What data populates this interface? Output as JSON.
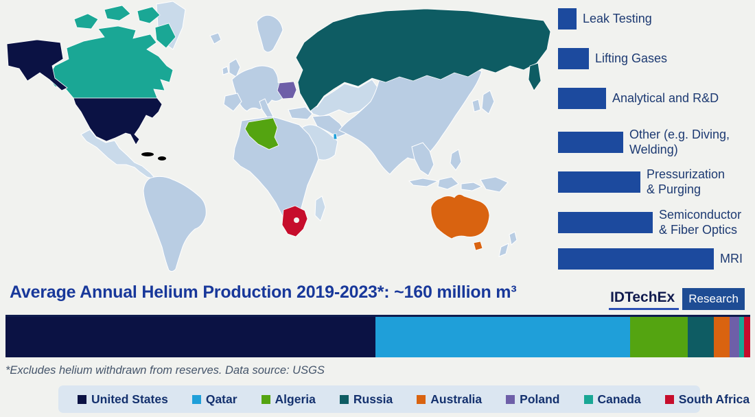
{
  "title": "Average Annual Helium Production 2019-2023*: ~160 million m³",
  "footnote": "*Excludes helium withdrawn from reserves. Data source: USGS",
  "logo": {
    "brand": "IDTechEx",
    "suffix": "Research"
  },
  "colors": {
    "page_bg": "#f1f2ef",
    "map_base_land": "#b9cde3",
    "map_base_land_alt": "#c9daea",
    "app_bar": "#1c4a9e",
    "app_label": "#1d3a72",
    "title_text": "#18389a",
    "footnote_text": "#44546a",
    "legend_bg": "#dbe6f1",
    "legend_text": "#14316e",
    "logo_text": "#111b4e",
    "logo_underline": "#2b50b4",
    "logo_box_bg": "#1e4c94",
    "bar_top_border": "#0e1b4d",
    "united_states": "#0b1244",
    "qatar": "#1f9fd9",
    "algeria": "#54a411",
    "russia": "#0e5c63",
    "australia": "#d96310",
    "poland": "#6e5fa8",
    "canada": "#1aa795",
    "south_africa": "#c60d2c",
    "lesotho_hole": "#f1f2ef"
  },
  "chart_data": [
    {
      "type": "bar",
      "orientation": "horizontal",
      "title": "Helium applications (no numeric axis shown; bar lengths relative)",
      "categories": [
        "Leak Testing",
        "Lifting Gases",
        "Analytical and R&D",
        "Other (e.g. Diving,\nWelding)",
        "Pressurization\n& Purging",
        "Semiconductor\n& Fiber Optics",
        "MRI"
      ],
      "values": [
        12,
        20,
        31,
        42,
        53,
        61,
        100
      ],
      "value_note": "percent of longest bar (MRI), estimated from pixels"
    },
    {
      "type": "bar",
      "subtype": "stacked-horizontal",
      "title": "Average Annual Helium Production 2019-2023*: ~160 million m³",
      "series": [
        {
          "name": "United States",
          "share_pct": 49.7,
          "color": "#0b1244"
        },
        {
          "name": "Qatar",
          "share_pct": 34.2,
          "color": "#1f9fd9"
        },
        {
          "name": "Algeria",
          "share_pct": 7.7,
          "color": "#54a411"
        },
        {
          "name": "Russia",
          "share_pct": 3.5,
          "color": "#0e5c63"
        },
        {
          "name": "Australia",
          "share_pct": 2.1,
          "color": "#d96310"
        },
        {
          "name": "Poland",
          "share_pct": 1.3,
          "color": "#6e5fa8"
        },
        {
          "name": "Canada",
          "share_pct": 0.7,
          "color": "#1aa795"
        },
        {
          "name": "South Africa",
          "share_pct": 0.8,
          "color": "#c60d2c"
        }
      ],
      "share_note": "segment shares estimated from pixel widths, total 100%"
    }
  ],
  "map": {
    "highlighted_countries": [
      "United States",
      "Qatar",
      "Algeria",
      "Russia",
      "Australia",
      "Poland",
      "Canada",
      "South Africa"
    ]
  }
}
